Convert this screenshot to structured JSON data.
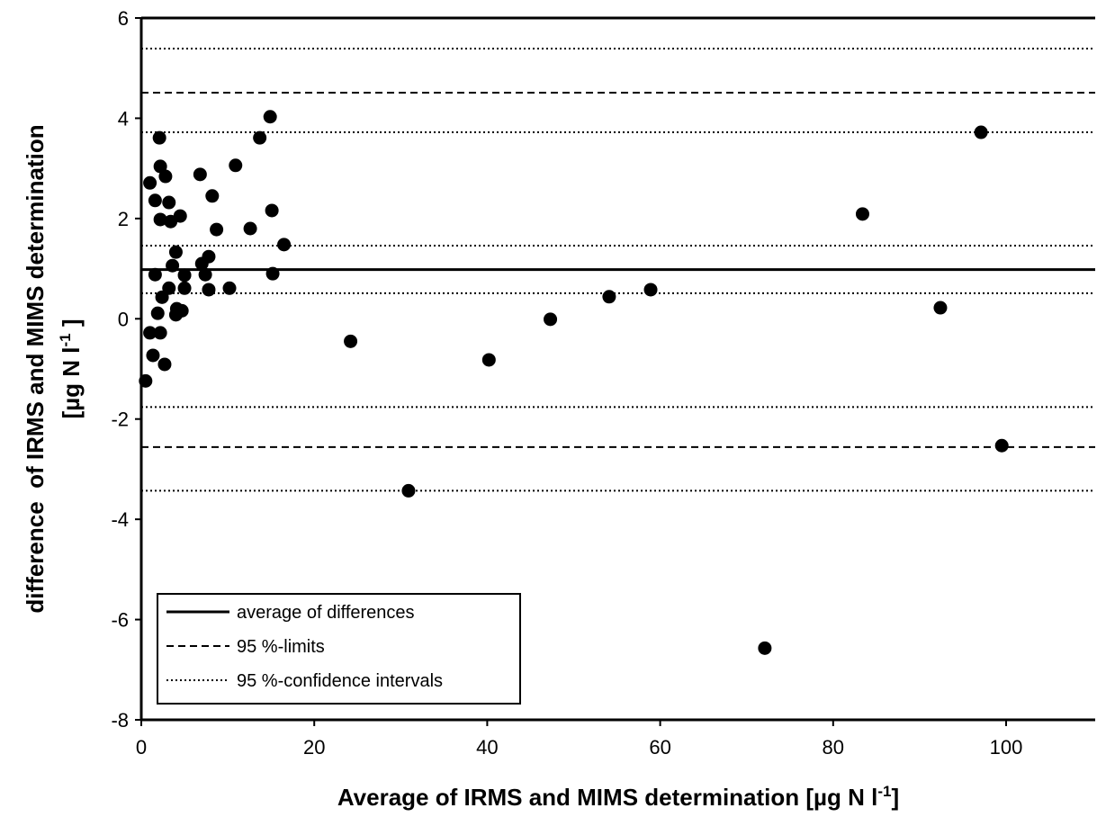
{
  "chart_data": {
    "type": "scatter",
    "xlabel": [
      "Average of IRMS and MIMS determination [µg N l",
      "-1",
      "]"
    ],
    "ylabel": {
      "line1": "difference  of IRMS and MIMS determination",
      "line2": [
        "[µg N l",
        "-1",
        " ]"
      ]
    },
    "xlim": [
      0,
      110
    ],
    "ylim": [
      -8,
      6
    ],
    "xticks": [
      0,
      20,
      40,
      60,
      80,
      100
    ],
    "yticks": [
      -8,
      -6,
      -4,
      -2,
      0,
      2,
      4,
      6
    ],
    "series": [
      {
        "color": "#000000",
        "x": [
          0.5,
          1.0,
          1.0,
          1.35,
          1.6,
          1.6,
          1.9,
          2.1,
          2.2,
          2.2,
          2.2,
          2.4,
          2.7,
          2.8,
          3.2,
          3.2,
          3.4,
          3.6,
          4.0,
          4.1,
          4.0,
          4.5,
          4.7,
          5.0,
          5.0,
          6.8,
          7.0,
          7.4,
          7.8,
          7.8,
          8.2,
          8.7,
          10.2,
          10.9,
          12.6,
          13.7,
          14.9,
          15.1,
          15.2,
          16.5,
          24.2,
          30.9,
          40.2,
          47.3,
          54.1,
          58.9,
          72.1,
          83.4,
          92.4,
          97.1,
          99.5
        ],
        "values": [
          -1.24,
          -0.28,
          2.71,
          -0.73,
          0.88,
          2.36,
          0.11,
          3.61,
          3.04,
          -0.28,
          1.98,
          0.43,
          -0.91,
          2.84,
          0.61,
          2.32,
          1.94,
          1.06,
          1.33,
          0.2,
          0.08,
          2.05,
          0.16,
          0.87,
          0.61,
          2.88,
          1.1,
          0.88,
          1.24,
          0.58,
          2.45,
          1.78,
          0.61,
          3.06,
          1.8,
          3.61,
          4.03,
          2.16,
          0.9,
          1.48,
          -0.45,
          -3.43,
          -0.82,
          -0.01,
          0.44,
          0.58,
          -6.57,
          2.09,
          0.22,
          3.72,
          -2.53
        ]
      }
    ],
    "reference_lines": [
      {
        "name": "average of differences",
        "style": "solid",
        "values": [
          0.98
        ]
      },
      {
        "name": "95 %-limits",
        "style": "dashed",
        "values": [
          4.51,
          -2.56
        ]
      },
      {
        "name": "95 %-confidence intervals",
        "style": "dotted",
        "values": [
          5.39,
          3.72,
          1.46,
          0.51,
          -1.76,
          -3.43
        ]
      }
    ]
  }
}
